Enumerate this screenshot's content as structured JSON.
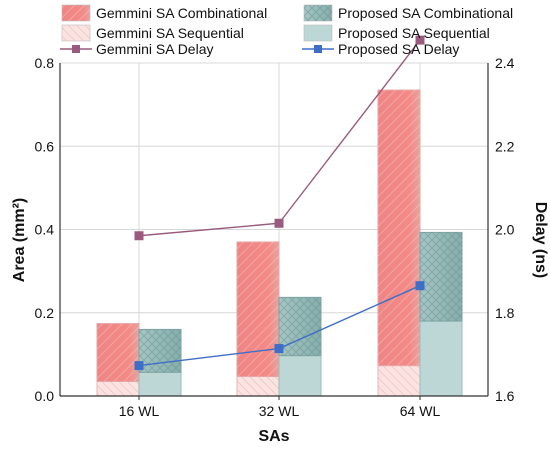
{
  "chart_data": {
    "type": "bar",
    "categories": [
      "16 WL",
      "32 WL",
      "64 WL"
    ],
    "xlabel": "SAs",
    "ylabel_left": "Area (mm²)",
    "ylabel_right": "Delay (ns)",
    "ylim_left": [
      0.0,
      0.8
    ],
    "ylim_right": [
      1.6,
      2.4
    ],
    "yticks_left": [
      "0.0",
      "0.2",
      "0.4",
      "0.6",
      "0.8"
    ],
    "yticks_right": [
      "1.6",
      "1.8",
      "2.0",
      "2.2",
      "2.4"
    ],
    "grid": true,
    "legend_position": "top",
    "bar_series": [
      {
        "name": "Gemmini SA Sequential",
        "group": "gemmini",
        "values": [
          0.035,
          0.047,
          0.073
        ]
      },
      {
        "name": "Gemmini SA Combinational",
        "group": "gemmini",
        "values": [
          0.139,
          0.323,
          0.662
        ]
      },
      {
        "name": "Proposed SA Sequential",
        "group": "proposed",
        "values": [
          0.057,
          0.097,
          0.18
        ]
      },
      {
        "name": "Proposed SA Combinational",
        "group": "proposed",
        "values": [
          0.103,
          0.14,
          0.213
        ]
      }
    ],
    "line_series": [
      {
        "name": "Gemmini SA Delay",
        "axis": "right",
        "values": [
          1.985,
          2.015,
          2.455
        ]
      },
      {
        "name": "Proposed SA Delay",
        "axis": "right",
        "values": [
          1.673,
          1.714,
          1.865
        ]
      }
    ],
    "legend": [
      {
        "label": "Gemmini SA Combinational",
        "key": "gemmini_comb"
      },
      {
        "label": "Proposed SA Combinational",
        "key": "proposed_comb"
      },
      {
        "label": "Gemmini SA Sequential",
        "key": "gemmini_seq"
      },
      {
        "label": "Proposed SA Sequential",
        "key": "proposed_seq"
      },
      {
        "label": "Gemmini SA Delay",
        "key": "gemmini_delay"
      },
      {
        "label": "Proposed SA Delay",
        "key": "proposed_delay"
      }
    ],
    "colors": {
      "gemmini_comb": "#f08686",
      "gemmini_seq": "#fbe3e1",
      "proposed_comb": "#8fb7b5",
      "proposed_seq": "#bcd7d5",
      "gemmini_delay": "#9a5a7e",
      "proposed_delay": "#3f6ec8",
      "grid": "#d8d8d8",
      "axis": "#333333"
    }
  }
}
